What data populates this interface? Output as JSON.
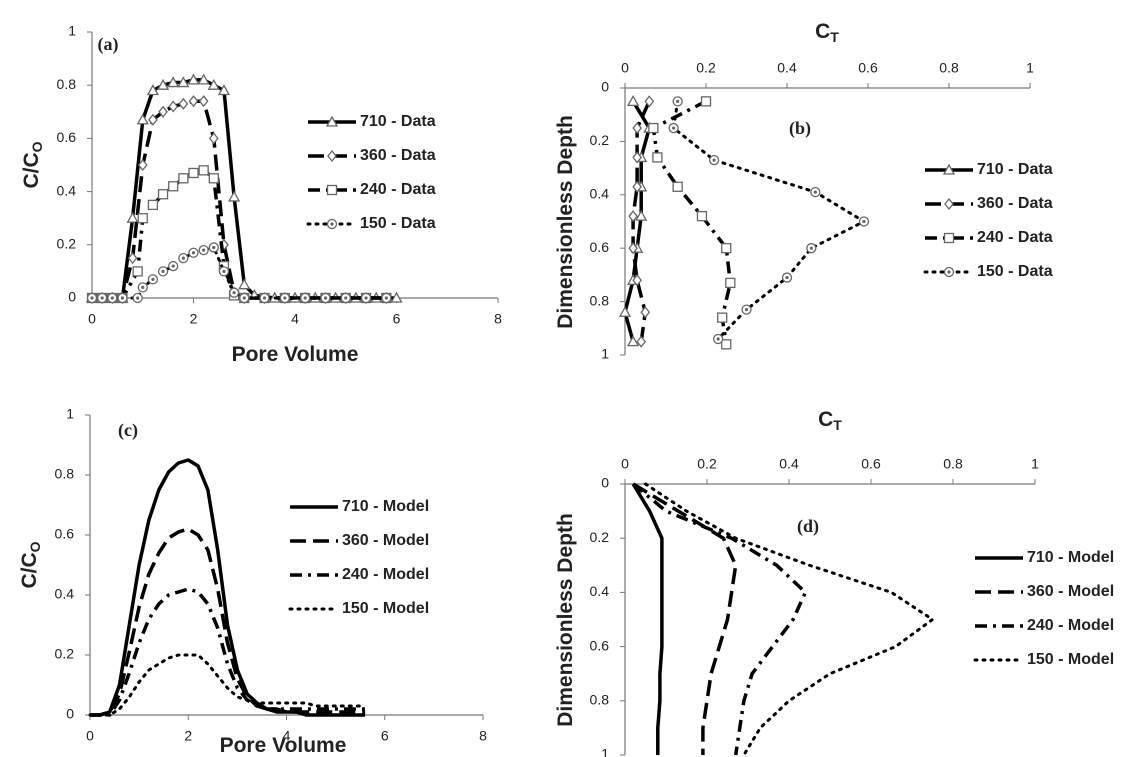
{
  "chart_data": [
    {
      "type": "line",
      "panel_label": "(a)",
      "x_label": "Pore Volume",
      "y_label": "C/C",
      "y_label_sub": "O",
      "xlim": [
        0,
        8
      ],
      "xticks": [
        0,
        2,
        4,
        6,
        8
      ],
      "ylim": [
        0,
        1
      ],
      "yticks": [
        0,
        0.2,
        0.4,
        0.6,
        0.8,
        1
      ],
      "series": [
        {
          "name": "710 - Data",
          "color": "#000000",
          "line_style": "solid",
          "marker": "triangle",
          "x": [
            0,
            0.2,
            0.4,
            0.6,
            0.8,
            1.0,
            1.2,
            1.4,
            1.6,
            1.8,
            2.0,
            2.2,
            2.4,
            2.6,
            2.8,
            3.0,
            3.2,
            3.6,
            4.0,
            4.4,
            4.8,
            5.2,
            5.6,
            6.0
          ],
          "values": [
            0,
            0,
            0,
            0,
            0.3,
            0.67,
            0.78,
            0.8,
            0.81,
            0.81,
            0.82,
            0.82,
            0.8,
            0.78,
            0.38,
            0.05,
            0.01,
            0,
            0,
            0,
            0,
            0,
            0,
            0
          ]
        },
        {
          "name": "360 - Data",
          "color": "#000000",
          "line_style": "dashed",
          "marker": "diamond",
          "x": [
            0,
            0.2,
            0.4,
            0.6,
            0.8,
            1.0,
            1.2,
            1.4,
            1.6,
            1.8,
            2.0,
            2.2,
            2.4,
            2.6,
            2.8,
            3.0,
            3.4,
            3.8,
            4.2,
            4.6,
            5.0,
            5.4,
            5.8
          ],
          "values": [
            0,
            0,
            0,
            0,
            0.15,
            0.5,
            0.67,
            0.7,
            0.72,
            0.73,
            0.74,
            0.74,
            0.6,
            0.2,
            0.02,
            0,
            0,
            0,
            0,
            0,
            0,
            0,
            0
          ]
        },
        {
          "name": "240 - Data",
          "color": "#000000",
          "line_style": "dashdot",
          "marker": "square",
          "x": [
            0,
            0.2,
            0.4,
            0.6,
            0.9,
            1.0,
            1.2,
            1.4,
            1.6,
            1.8,
            2.0,
            2.2,
            2.4,
            2.6,
            2.8,
            3.0,
            3.4,
            3.8,
            4.2,
            4.6,
            5.0,
            5.4,
            5.8
          ],
          "values": [
            0,
            0,
            0,
            0,
            0.1,
            0.3,
            0.35,
            0.39,
            0.42,
            0.45,
            0.47,
            0.48,
            0.45,
            0.12,
            0.01,
            0,
            0,
            0,
            0,
            0,
            0,
            0,
            0
          ]
        },
        {
          "name": "150 - Data",
          "color": "#000000",
          "line_style": "dotted",
          "marker": "circle",
          "x": [
            0,
            0.2,
            0.4,
            0.6,
            0.9,
            1.0,
            1.2,
            1.4,
            1.6,
            1.8,
            2.0,
            2.2,
            2.4,
            2.6,
            2.8,
            3.0,
            3.4,
            3.8,
            4.2,
            4.6,
            5.0,
            5.4,
            5.8
          ],
          "values": [
            0,
            0,
            0,
            0,
            0,
            0.04,
            0.07,
            0.1,
            0.12,
            0.15,
            0.17,
            0.18,
            0.19,
            0.1,
            0.02,
            0,
            0,
            0,
            0,
            0,
            0,
            0,
            0
          ]
        }
      ]
    },
    {
      "type": "line",
      "panel_label": "(b)",
      "x_label": "C",
      "x_label_sub": "T",
      "y_label": "Dimensionless Depth",
      "xlim": [
        0,
        1
      ],
      "xticks": [
        0,
        0.2,
        0.4,
        0.6,
        0.8,
        1
      ],
      "ylim": [
        0,
        1
      ],
      "yticks": [
        0,
        0.2,
        0.4,
        0.6,
        0.8,
        1
      ],
      "series": [
        {
          "name": "710 - Data",
          "color": "#000000",
          "line_style": "solid",
          "marker": "triangle",
          "depth": [
            0.05,
            0.15,
            0.26,
            0.37,
            0.48,
            0.6,
            0.72,
            0.84,
            0.95
          ],
          "values": [
            0.02,
            0.06,
            0.04,
            0.04,
            0.04,
            0.03,
            0.02,
            0,
            0.02
          ]
        },
        {
          "name": "360 - Data",
          "color": "#000000",
          "line_style": "dashed",
          "marker": "diamond",
          "depth": [
            0.05,
            0.15,
            0.26,
            0.37,
            0.48,
            0.6,
            0.72,
            0.84,
            0.95
          ],
          "values": [
            0.06,
            0.03,
            0.03,
            0.03,
            0.02,
            0.02,
            0.03,
            0.05,
            0.04
          ]
        },
        {
          "name": "240 - Data",
          "color": "#000000",
          "line_style": "dashdot",
          "marker": "square",
          "depth": [
            0.05,
            0.15,
            0.26,
            0.37,
            0.48,
            0.6,
            0.73,
            0.86,
            0.96
          ],
          "values": [
            0.2,
            0.07,
            0.08,
            0.13,
            0.19,
            0.25,
            0.26,
            0.24,
            0.25
          ]
        },
        {
          "name": "150 - Data",
          "color": "#000000",
          "line_style": "dotted",
          "marker": "circle",
          "depth": [
            0.05,
            0.15,
            0.27,
            0.39,
            0.5,
            0.6,
            0.71,
            0.83,
            0.94
          ],
          "values": [
            0.13,
            0.12,
            0.22,
            0.47,
            0.59,
            0.46,
            0.4,
            0.3,
            0.23
          ]
        }
      ]
    },
    {
      "type": "line",
      "panel_label": "(c)",
      "x_label": "Pore Volume",
      "y_label": "C/C",
      "y_label_sub": "O",
      "xlim": [
        0,
        8
      ],
      "xticks": [
        0,
        2,
        4,
        6,
        8
      ],
      "ylim": [
        0,
        1
      ],
      "yticks": [
        0,
        0.2,
        0.4,
        0.6,
        0.8,
        1
      ],
      "x": [
        0,
        0.2,
        0.4,
        0.6,
        0.8,
        1.0,
        1.2,
        1.4,
        1.6,
        1.8,
        2.0,
        2.2,
        2.4,
        2.6,
        2.8,
        3.0,
        3.2,
        3.4,
        3.6,
        3.8,
        4.0,
        4.2,
        4.4,
        4.6,
        4.8,
        5.0,
        5.2,
        5.4,
        5.6
      ],
      "series": [
        {
          "name": "710 - Model",
          "color": "#000000",
          "line_style": "solid",
          "values": [
            0,
            0,
            0.01,
            0.1,
            0.3,
            0.5,
            0.65,
            0.75,
            0.81,
            0.84,
            0.85,
            0.83,
            0.75,
            0.55,
            0.3,
            0.15,
            0.07,
            0.04,
            0.02,
            0.01,
            0.01,
            0.01,
            0,
            0,
            0,
            0,
            0,
            0,
            0
          ]
        },
        {
          "name": "360 - Model",
          "color": "#000000",
          "line_style": "dashed",
          "values": [
            0,
            0,
            0.01,
            0.07,
            0.21,
            0.36,
            0.47,
            0.54,
            0.59,
            0.61,
            0.62,
            0.6,
            0.55,
            0.42,
            0.24,
            0.12,
            0.06,
            0.03,
            0.02,
            0.02,
            0.01,
            0.01,
            0.01,
            0.01,
            0.01,
            0.01,
            0.01,
            0.01,
            0.01
          ]
        },
        {
          "name": "240 - Model",
          "color": "#000000",
          "line_style": "dashdot",
          "values": [
            0,
            0,
            0,
            0.05,
            0.14,
            0.24,
            0.32,
            0.37,
            0.4,
            0.41,
            0.42,
            0.41,
            0.37,
            0.29,
            0.17,
            0.09,
            0.05,
            0.03,
            0.02,
            0.02,
            0.02,
            0.02,
            0.02,
            0.02,
            0.02,
            0.02,
            0.02,
            0.02,
            0.02
          ]
        },
        {
          "name": "150 - Model",
          "color": "#000000",
          "line_style": "dotted",
          "values": [
            0,
            0,
            0,
            0.02,
            0.06,
            0.11,
            0.15,
            0.17,
            0.19,
            0.2,
            0.2,
            0.2,
            0.17,
            0.13,
            0.09,
            0.06,
            0.05,
            0.04,
            0.04,
            0.04,
            0.04,
            0.04,
            0.04,
            0.03,
            0.03,
            0.03,
            0.03,
            0.03,
            0.03
          ]
        }
      ]
    },
    {
      "type": "line",
      "panel_label": "(d)",
      "x_label": "C",
      "x_label_sub": "T",
      "y_label": "Dimensionless Depth",
      "xlim": [
        0,
        1
      ],
      "xticks": [
        0,
        0.2,
        0.4,
        0.6,
        0.8,
        1
      ],
      "ylim": [
        0,
        1
      ],
      "yticks": [
        0,
        0.2,
        0.4,
        0.6,
        0.8,
        1
      ],
      "depth": [
        0,
        0.1,
        0.2,
        0.3,
        0.4,
        0.5,
        0.6,
        0.7,
        0.8,
        0.9,
        1
      ],
      "series": [
        {
          "name": "710 - Model",
          "color": "#000000",
          "line_style": "solid",
          "values": [
            0.02,
            0.06,
            0.09,
            0.09,
            0.09,
            0.09,
            0.09,
            0.085,
            0.085,
            0.08,
            0.08
          ]
        },
        {
          "name": "360 - Model",
          "color": "#000000",
          "line_style": "dashed",
          "values": [
            0.02,
            0.13,
            0.24,
            0.27,
            0.26,
            0.25,
            0.23,
            0.21,
            0.2,
            0.19,
            0.19
          ]
        },
        {
          "name": "240 - Model",
          "color": "#000000",
          "line_style": "dashdot",
          "values": [
            0.02,
            0.1,
            0.26,
            0.37,
            0.44,
            0.41,
            0.36,
            0.31,
            0.29,
            0.28,
            0.27
          ]
        },
        {
          "name": "150 - Model",
          "color": "#000000",
          "line_style": "dotted",
          "values": [
            0.05,
            0.15,
            0.27,
            0.45,
            0.65,
            0.75,
            0.66,
            0.5,
            0.4,
            0.33,
            0.29
          ]
        }
      ]
    }
  ]
}
